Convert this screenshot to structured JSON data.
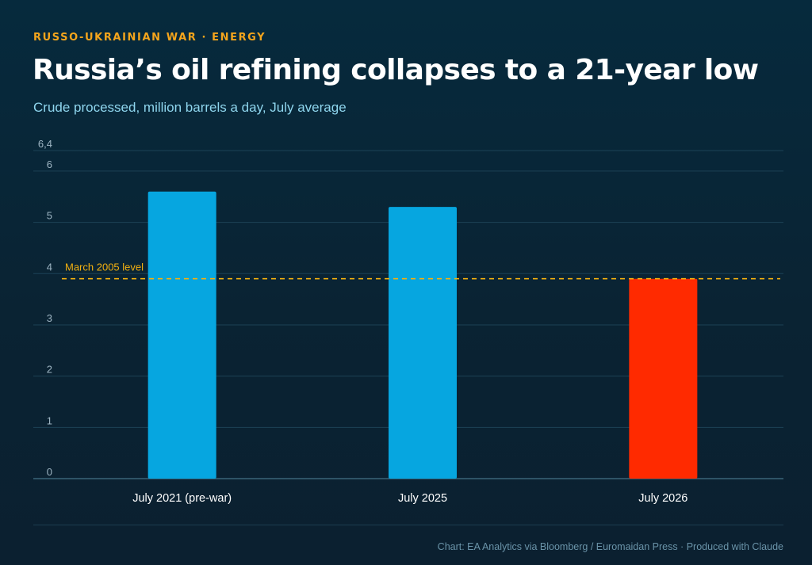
{
  "header": {
    "kicker": "RUSSO-UKRAINIAN WAR · ENERGY",
    "title": "Russia’s oil refining collapses to a 21-year low",
    "subtitle": "Crude processed, million barrels a day, July average"
  },
  "footer": {
    "source": "Chart: EA Analytics via Bloomberg / Euromaidan Press · Produced with Claude"
  },
  "colors": {
    "bar_normal": "#06a6e0",
    "bar_highlight": "#ff2a00",
    "reference_line": "#f2b010",
    "grid": "#1c4256",
    "axis_text": "#9fb6c4",
    "category_text": "#ffffff"
  },
  "chart_data": {
    "type": "bar",
    "categories": [
      "July 2021 (pre-war)",
      "July 2025",
      "July 2026"
    ],
    "values": [
      5.6,
      5.3,
      3.9
    ],
    "highlight_index": 2,
    "yticks": [
      "0",
      "1",
      "2",
      "3",
      "4",
      "5",
      "6",
      "6,4"
    ],
    "ytick_values": [
      0,
      1,
      2,
      3,
      4,
      5,
      6,
      6.4
    ],
    "ylim": [
      0,
      6.4
    ],
    "grid": true,
    "reference_line": {
      "value": 3.9,
      "label": "March 2005 level"
    }
  }
}
